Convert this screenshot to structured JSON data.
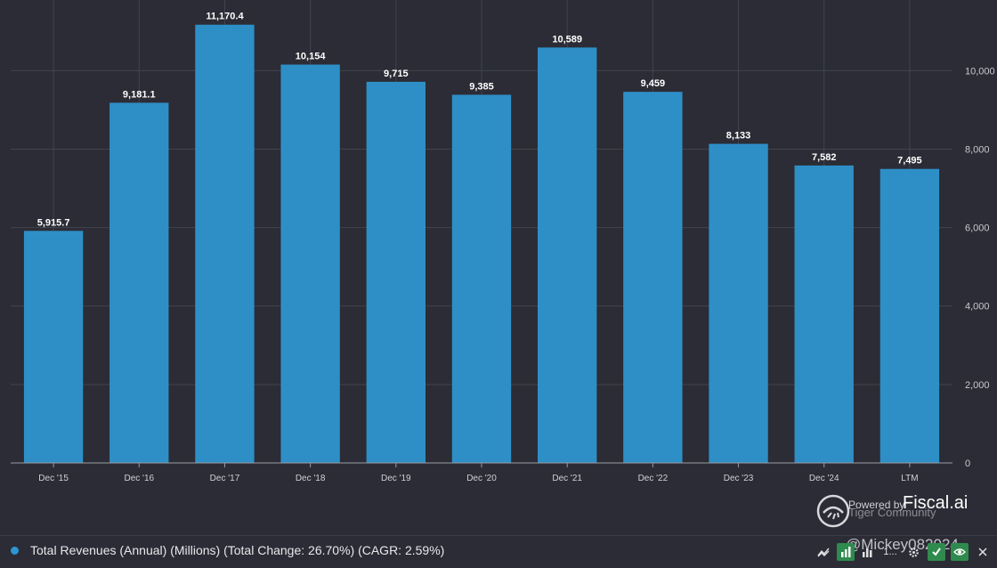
{
  "chart_data": {
    "type": "bar",
    "title": "Total Revenues (Annual) (Millions)",
    "categories": [
      "Dec '15",
      "Dec '16",
      "Dec '17",
      "Dec '18",
      "Dec '19",
      "Dec '20",
      "Dec '21",
      "Dec '22",
      "Dec '23",
      "Dec '24",
      "LTM"
    ],
    "values": [
      5915.7,
      9181.1,
      11170.4,
      10154,
      9715,
      9385,
      10589,
      9459,
      8133,
      7582,
      7495
    ],
    "labels": [
      "5,915.7",
      "9,181.1",
      "11,170.4",
      "10,154",
      "9,715",
      "9,385",
      "10,589",
      "9,459",
      "8,133",
      "7,582",
      "7,495"
    ],
    "yticks": [
      0,
      2000,
      4000,
      6000,
      8000,
      10000
    ],
    "ytick_labels": [
      "0",
      "2,000",
      "4,000",
      "6,000",
      "8,000",
      "10,000"
    ],
    "ylim": [
      0,
      11800
    ],
    "y_axis_side": "right",
    "grid": true,
    "colors": {
      "bar": "#2e8fc7",
      "background": "#2b2c35",
      "grid": "#42434d"
    }
  },
  "branding": {
    "powered_by": "Powered by",
    "name": "Fiscal.ai",
    "watermark": "Tiger Community"
  },
  "legend": {
    "text": "Total Revenues (Annual) (Millions) (Total Change: 26.70%) (CAGR: 2.59%)",
    "color": "#2e95d3"
  },
  "footer": {
    "user_handle": "@Mickey082024",
    "toolbar_count": "1..."
  }
}
